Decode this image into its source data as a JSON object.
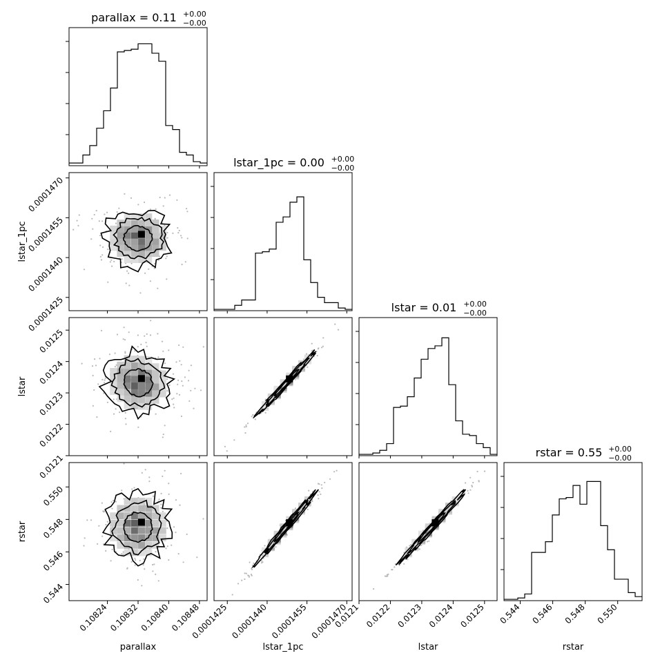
{
  "chart_data": {
    "type": "corner",
    "params": [
      {
        "name": "parallax",
        "title": "parallax = 0.11",
        "err_plus": "+0.00",
        "err_minus": "−0.00",
        "xlabel": "parallax",
        "range": [
          0.10814,
          0.1085
        ],
        "ticks": [
          "0.10824",
          "0.10832",
          "0.10840",
          "0.10848"
        ],
        "hist": [
          0.02,
          0.02,
          0.08,
          0.15,
          0.28,
          0.41,
          0.58,
          0.85,
          0.86,
          0.87,
          0.91,
          0.91,
          0.84,
          0.78,
          0.3,
          0.27,
          0.1,
          0.08,
          0.03,
          0.02
        ]
      },
      {
        "name": "lstar_1pc",
        "title": "lstar_1pc = 0.00",
        "err_plus": "+0.00",
        "err_minus": "−0.00",
        "xlabel": "lstar_1pc",
        "range": [
          0.000142,
          0.0001472
        ],
        "ticks": [
          "0.0001425",
          "0.0001440",
          "0.0001455",
          "0.0001470"
        ],
        "hist": [
          0.01,
          0.01,
          0.01,
          0.04,
          0.08,
          0.08,
          0.43,
          0.44,
          0.46,
          0.66,
          0.7,
          0.81,
          0.85,
          0.38,
          0.21,
          0.1,
          0.06,
          0.06,
          0.02,
          0.01
        ]
      },
      {
        "name": "lstar",
        "title": "lstar = 0.01",
        "err_plus": "+0.00",
        "err_minus": "−0.00",
        "xlabel": "lstar",
        "range": [
          0.0121,
          0.01254
        ],
        "ticks": [
          "0.0121",
          "0.0122",
          "0.0123",
          "0.0124",
          "0.0125"
        ],
        "hist": [
          0.01,
          0.01,
          0.02,
          0.04,
          0.09,
          0.36,
          0.37,
          0.44,
          0.58,
          0.72,
          0.8,
          0.82,
          0.88,
          0.53,
          0.26,
          0.16,
          0.15,
          0.09,
          0.06,
          0.01
        ]
      },
      {
        "name": "rstar",
        "title": "rstar = 0.55",
        "err_plus": "+0.00",
        "err_minus": "−0.00",
        "xlabel": "rstar",
        "range": [
          0.543,
          0.5515
        ],
        "ticks": [
          "0.544",
          "0.546",
          "0.548",
          "0.550"
        ],
        "hist": [
          0.01,
          0.01,
          0.02,
          0.05,
          0.36,
          0.36,
          0.44,
          0.64,
          0.76,
          0.77,
          0.86,
          0.72,
          0.89,
          0.89,
          0.56,
          0.38,
          0.16,
          0.16,
          0.06,
          0.03
        ]
      }
    ],
    "row_ticks": [
      null,
      [
        "0.0001425",
        "0.0001440",
        "0.0001455",
        "0.0001470"
      ],
      [
        "0.0121",
        "0.0122",
        "0.0123",
        "0.0124",
        "0.0125"
      ],
      [
        "0.544",
        "0.546",
        "0.548",
        "0.550"
      ]
    ],
    "row_labels": [
      "",
      "lstar_1pc",
      "lstar",
      "rstar"
    ],
    "correlation": {
      "1-0": 0.0,
      "2-0": -0.05,
      "3-0": 0.0,
      "2-1": 0.99,
      "3-1": 0.99,
      "3-2": 0.99
    },
    "grid": false,
    "legend": "none"
  }
}
